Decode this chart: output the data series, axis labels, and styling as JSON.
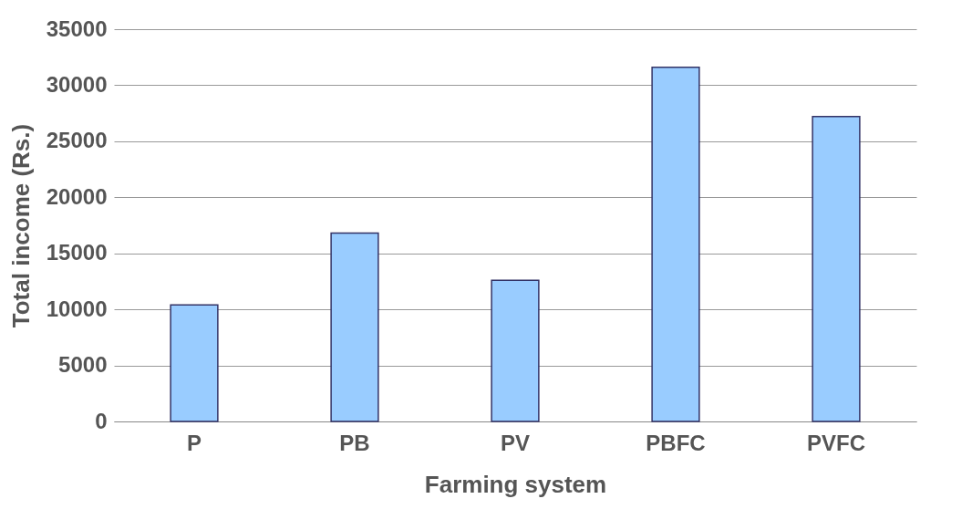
{
  "chart_data": {
    "type": "bar",
    "xlabel": "Farming system",
    "ylabel": "Total income (Rs.)",
    "categories": [
      "P",
      "PB",
      "PV",
      "PBFC",
      "PVFC"
    ],
    "values": [
      10400,
      16800,
      12600,
      31600,
      27200
    ],
    "color": "#99ccff",
    "ylim": [
      0,
      35000
    ],
    "yticks": [
      0,
      5000,
      10000,
      15000,
      20000,
      25000,
      30000,
      35000
    ],
    "grid": "y"
  }
}
